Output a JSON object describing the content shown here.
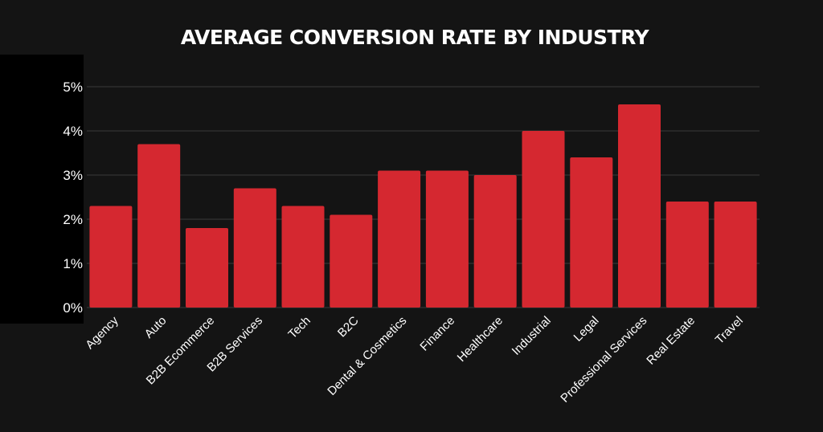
{
  "chart_data": {
    "type": "bar",
    "title": "AVERAGE CONVERSION RATE BY INDUSTRY",
    "xlabel": "",
    "ylabel": "",
    "ylim": [
      0,
      5
    ],
    "yticks": [
      0,
      1,
      2,
      3,
      4,
      5
    ],
    "ytick_labels": [
      "0%",
      "1%",
      "2%",
      "3%",
      "4%",
      "5%"
    ],
    "grid": true,
    "categories": [
      "Agency",
      "Auto",
      "B2B Ecommerce",
      "B2B Services",
      "Tech",
      "B2C",
      "Dental & Cosmetics",
      "Finance",
      "Healthcare",
      "Industrial",
      "Legal",
      "Professional Services",
      "Real Estate",
      "Travel"
    ],
    "values": [
      2.3,
      3.7,
      1.8,
      2.7,
      2.3,
      2.1,
      3.1,
      3.1,
      3.0,
      4.0,
      3.4,
      4.6,
      2.4,
      2.4
    ]
  },
  "colors": {
    "background": "#141414",
    "bar": "#d52830",
    "gridline": "#3a3a3a",
    "text": "#ffffff"
  }
}
